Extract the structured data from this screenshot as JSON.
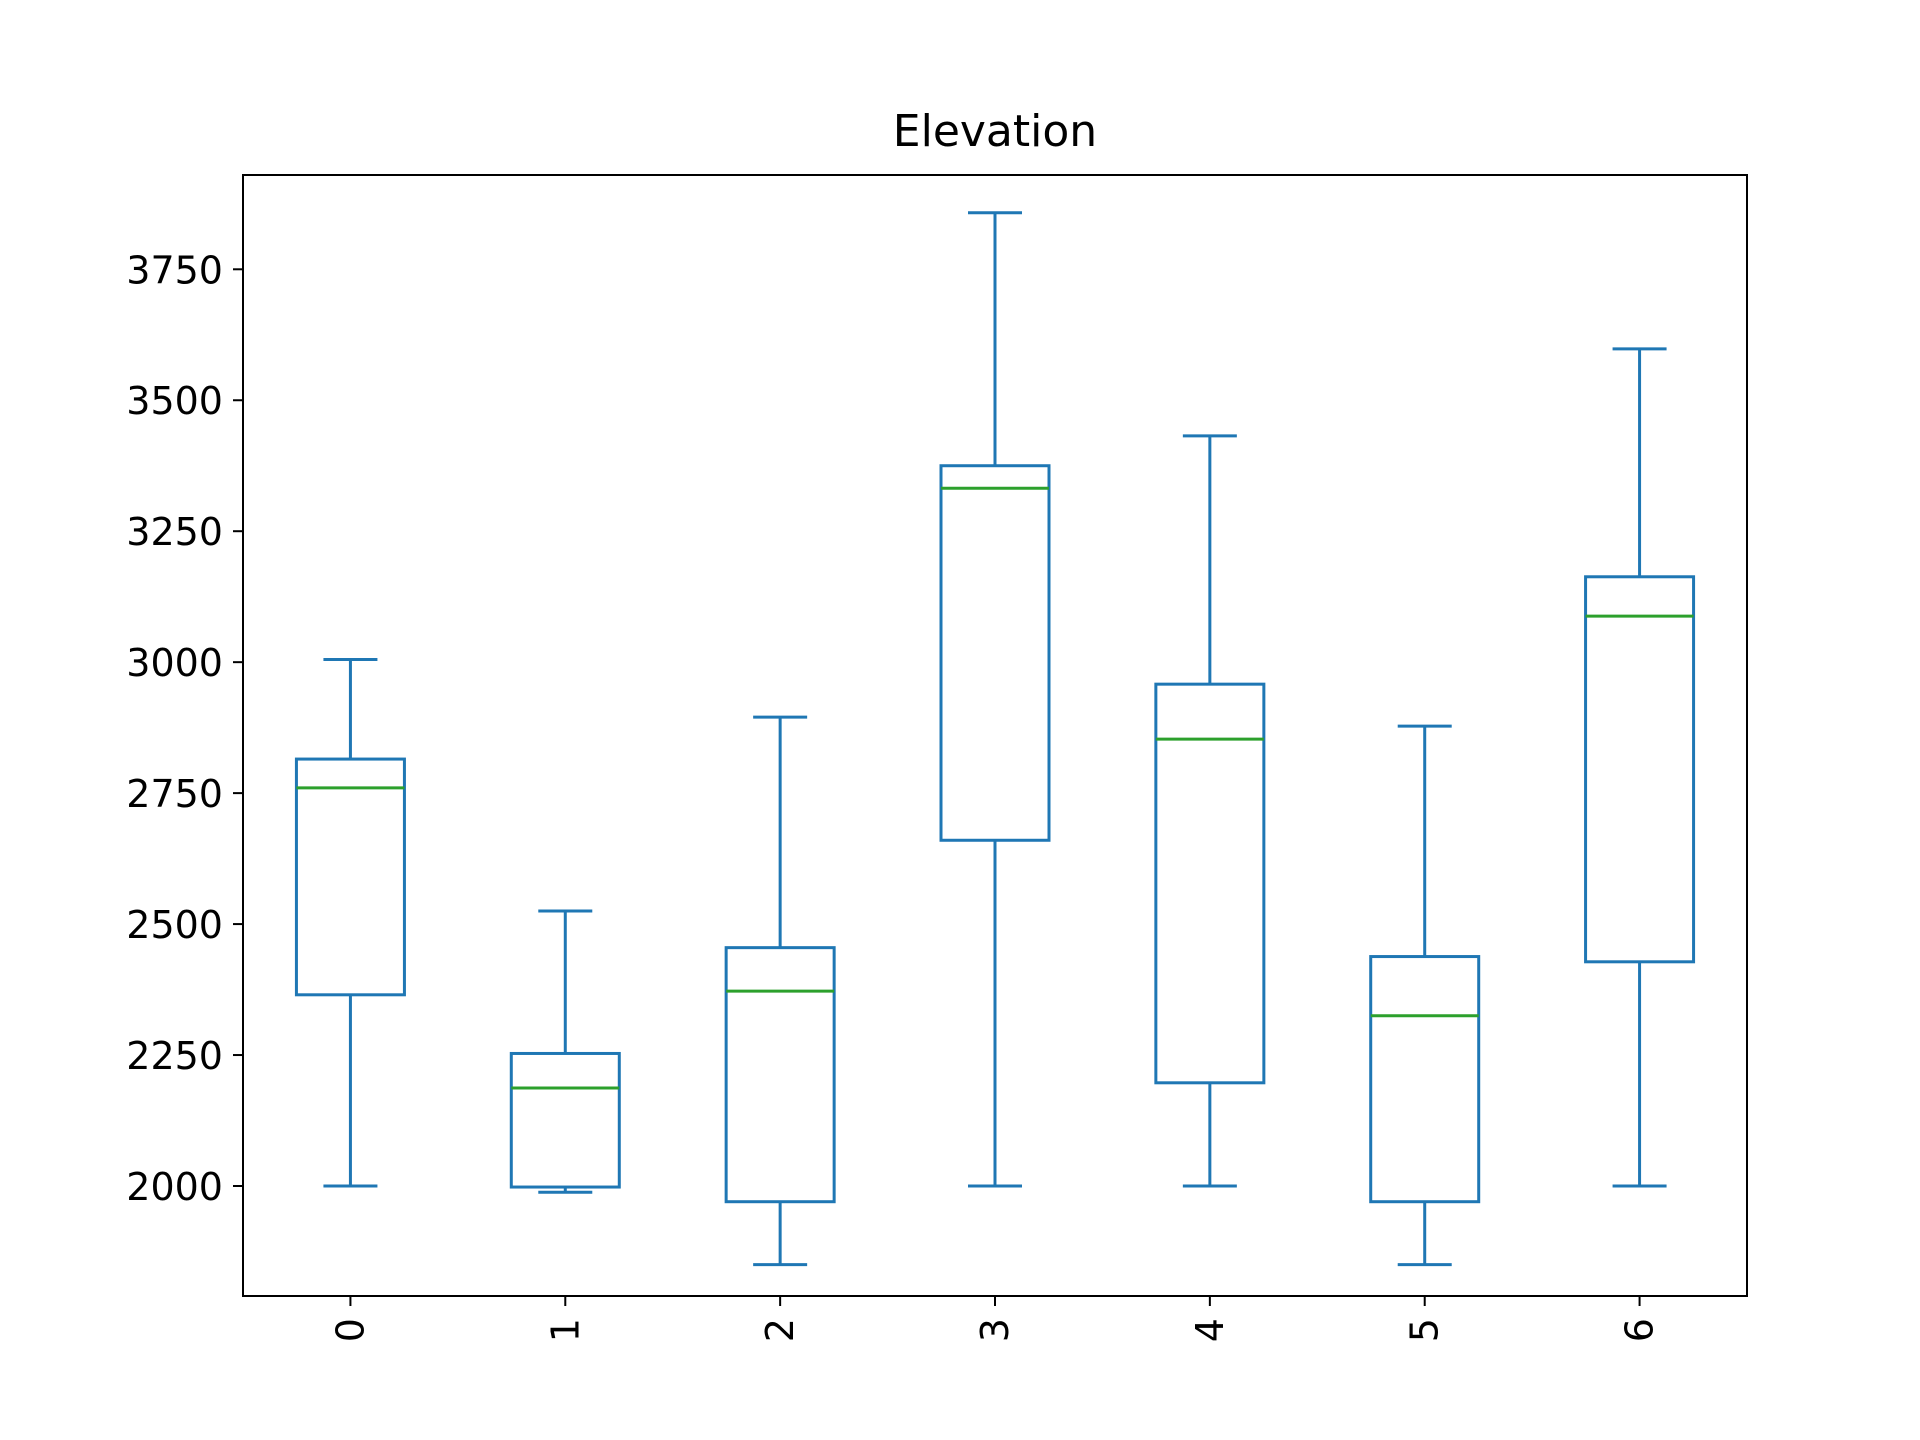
{
  "chart_data": {
    "type": "box",
    "title": "Elevation",
    "xlabel": "",
    "ylabel": "",
    "categories": [
      "0",
      "1",
      "2",
      "3",
      "4",
      "5",
      "6"
    ],
    "ylim": [
      1790,
      3930
    ],
    "y_ticks": [
      2000,
      2250,
      2500,
      2750,
      3000,
      3250,
      3500,
      3750
    ],
    "x_tick_rotation": "vertical",
    "grid": false,
    "boxes": [
      {
        "category": "0",
        "whisker_low": 2000,
        "q1": 2365,
        "median": 2760,
        "q3": 2815,
        "whisker_high": 3005
      },
      {
        "category": "1",
        "whisker_low": 1988,
        "q1": 1998,
        "median": 2187,
        "q3": 2253,
        "whisker_high": 2525
      },
      {
        "category": "2",
        "whisker_low": 1850,
        "q1": 1970,
        "median": 2372,
        "q3": 2455,
        "whisker_high": 2895
      },
      {
        "category": "3",
        "whisker_low": 2000,
        "q1": 2660,
        "median": 3332,
        "q3": 3375,
        "whisker_high": 3858
      },
      {
        "category": "4",
        "whisker_low": 2000,
        "q1": 2197,
        "median": 2853,
        "q3": 2958,
        "whisker_high": 3432
      },
      {
        "category": "5",
        "whisker_low": 1850,
        "q1": 1970,
        "median": 2325,
        "q3": 2438,
        "whisker_high": 2878
      },
      {
        "category": "6",
        "whisker_low": 2000,
        "q1": 2428,
        "median": 3088,
        "q3": 3163,
        "whisker_high": 3598
      }
    ],
    "colors": {
      "box": "#1f77b4",
      "median": "#2ca02c",
      "axes": "#000000"
    }
  }
}
